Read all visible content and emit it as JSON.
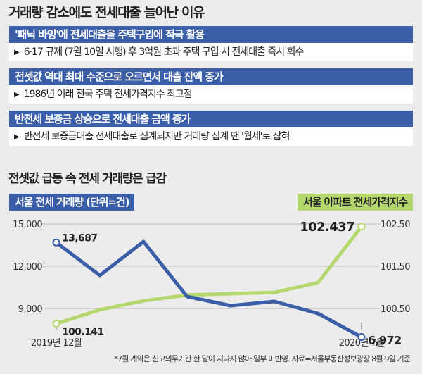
{
  "headline": "거래량 감소에도 전세대출 늘어난 이유",
  "reasons": [
    {
      "title": "'패닉 바잉'에 전세대출을 주택구입에 적극 활용",
      "detail": "6·17 규제 (7월 10일 시행) 후 3억원 초과 주택 구입 시 전세대출 즉시 회수"
    },
    {
      "title": "전셋값 역대 최대 수준으로 오르면서 대출 잔액 증가",
      "detail": "1986년 이래 전국 주택 전세가격지수 최고점"
    },
    {
      "title": "반전세 보증금 상승으로 전세대출 금액 증가",
      "detail": "반전세 보증금대출 전세대출로 집계되지만 거래량 집계 땐 '월세'로 잡혀"
    }
  ],
  "arrow_glyph": "▶",
  "chart_title": "전셋값 급등 속 전세 거래량은 급감",
  "footnote": "*7월 계약은 신고의무기간 한 달이 지나지 않아 일부 미반영. 자료=서울부동산정보광장 8월 9일 기준.",
  "colors": {
    "volume_series": "#3a5ea8",
    "index_series": "#b5d86e"
  },
  "chart_data": {
    "type": "line",
    "x_start_label": "2019년 12월",
    "x_end_label": "2020년 7월",
    "x": [
      "2019-12",
      "2020-01",
      "2020-02",
      "2020-03",
      "2020-04",
      "2020-05",
      "2020-06",
      "2020-07"
    ],
    "left_axis": {
      "label": "서울 전세 거래량 (단위=건)",
      "ylim": [
        7000,
        15000
      ],
      "ticks": [
        "15,000",
        "12,000",
        "9,000"
      ],
      "tick_values": [
        15000,
        12000,
        9000
      ]
    },
    "right_axis": {
      "label": "서울 아파트 전세가격지수",
      "ylim": [
        100.0,
        102.5
      ],
      "ticks": [
        "102.50",
        "101.50",
        "100.50"
      ],
      "tick_values": [
        102.5,
        101.5,
        100.5
      ]
    },
    "series": [
      {
        "name": "서울 전세 거래량 (단위=건)",
        "axis": "left",
        "values": [
          13687,
          11350,
          13750,
          9850,
          9200,
          9500,
          8650,
          6972
        ],
        "start_label": "13,687",
        "end_label": "6,972"
      },
      {
        "name": "서울 아파트 전세가격지수",
        "axis": "right",
        "values": [
          100.141,
          100.47,
          100.68,
          100.82,
          100.85,
          100.88,
          101.11,
          102.437
        ],
        "start_label": "100.141",
        "end_label": "102.437"
      }
    ],
    "grid": "horizontal"
  }
}
